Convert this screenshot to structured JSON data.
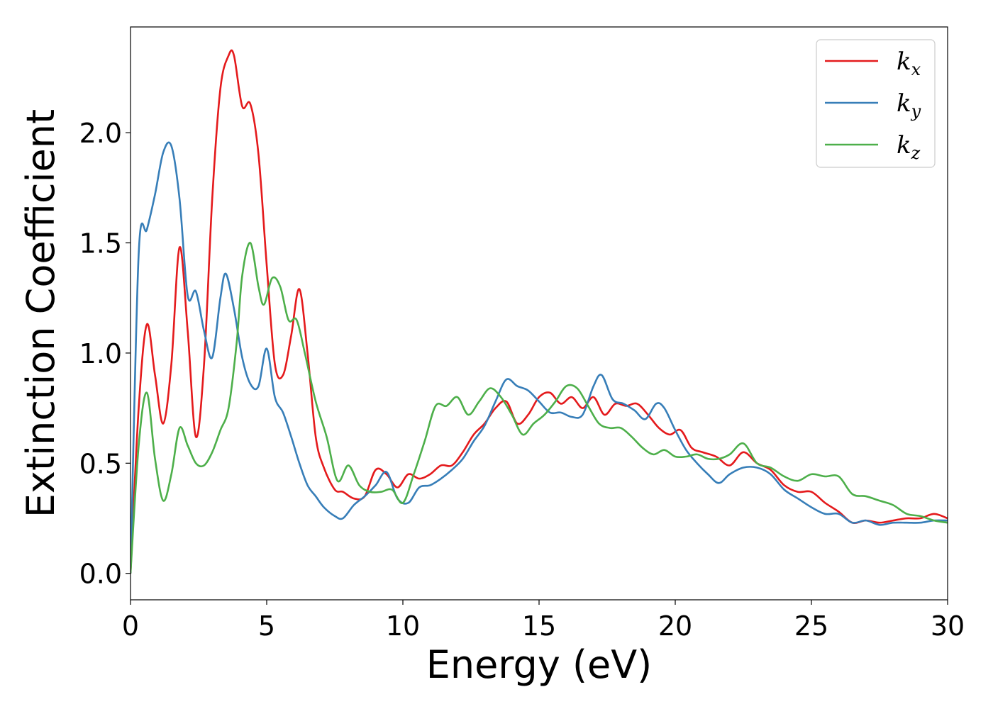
{
  "chart_data": {
    "type": "line",
    "xlabel": "Energy (eV)",
    "ylabel": "Extinction Coefficient",
    "xlim": [
      0,
      30
    ],
    "ylim": [
      -0.12,
      2.48
    ],
    "xticks": [
      0,
      5,
      10,
      15,
      20,
      25,
      30
    ],
    "xtick_labels": [
      "0",
      "5",
      "10",
      "15",
      "20",
      "25",
      "30"
    ],
    "yticks": [
      0.0,
      0.5,
      1.0,
      1.5,
      2.0
    ],
    "ytick_labels": [
      "0.0",
      "0.5",
      "1.0",
      "1.5",
      "2.0"
    ],
    "grid": false,
    "legend_position": "top-right",
    "series": [
      {
        "name": "k_x",
        "label_main": "k",
        "label_sub": "x",
        "color": "#e41a1c",
        "x": [
          0,
          0.3,
          0.6,
          0.9,
          1.2,
          1.5,
          1.8,
          2.1,
          2.4,
          2.7,
          3.0,
          3.3,
          3.6,
          3.8,
          4.1,
          4.4,
          4.7,
          5.0,
          5.3,
          5.6,
          5.9,
          6.2,
          6.5,
          6.8,
          7.1,
          7.5,
          7.8,
          8.2,
          8.6,
          9.0,
          9.4,
          9.8,
          10.2,
          10.6,
          11.0,
          11.4,
          11.8,
          12.2,
          12.6,
          13.0,
          13.4,
          13.8,
          14.2,
          14.6,
          15.0,
          15.4,
          15.8,
          16.2,
          16.6,
          17.0,
          17.4,
          17.8,
          18.2,
          18.6,
          19.0,
          19.4,
          19.8,
          20.2,
          20.6,
          21.0,
          21.5,
          22.0,
          22.5,
          23.0,
          23.5,
          24.0,
          24.5,
          25.0,
          25.5,
          26.0,
          26.5,
          27.0,
          27.5,
          28.0,
          28.5,
          29.0,
          29.5,
          30.0
        ],
        "y": [
          0.0,
          0.75,
          1.13,
          0.9,
          0.68,
          0.95,
          1.48,
          1.1,
          0.62,
          0.95,
          1.7,
          2.2,
          2.35,
          2.35,
          2.12,
          2.13,
          1.9,
          1.4,
          0.95,
          0.9,
          1.08,
          1.29,
          1.0,
          0.62,
          0.48,
          0.38,
          0.37,
          0.34,
          0.35,
          0.47,
          0.45,
          0.39,
          0.45,
          0.43,
          0.45,
          0.49,
          0.49,
          0.55,
          0.63,
          0.68,
          0.75,
          0.78,
          0.68,
          0.72,
          0.8,
          0.82,
          0.77,
          0.8,
          0.75,
          0.8,
          0.72,
          0.77,
          0.76,
          0.77,
          0.72,
          0.66,
          0.63,
          0.65,
          0.57,
          0.55,
          0.53,
          0.49,
          0.55,
          0.5,
          0.47,
          0.4,
          0.37,
          0.37,
          0.32,
          0.28,
          0.23,
          0.24,
          0.23,
          0.24,
          0.25,
          0.25,
          0.27,
          0.25
        ]
      },
      {
        "name": "k_y",
        "label_main": "k",
        "label_sub": "y",
        "color": "#377eb8",
        "x": [
          0,
          0.3,
          0.6,
          0.9,
          1.2,
          1.5,
          1.8,
          2.1,
          2.4,
          2.7,
          3.0,
          3.3,
          3.5,
          3.8,
          4.1,
          4.4,
          4.7,
          5.0,
          5.3,
          5.6,
          5.9,
          6.2,
          6.5,
          6.8,
          7.1,
          7.5,
          7.8,
          8.2,
          8.6,
          9.0,
          9.4,
          9.8,
          10.2,
          10.6,
          11.0,
          11.4,
          11.8,
          12.2,
          12.6,
          13.0,
          13.4,
          13.8,
          14.2,
          14.6,
          15.0,
          15.4,
          15.8,
          16.2,
          16.6,
          17.0,
          17.3,
          17.7,
          18.1,
          18.5,
          18.9,
          19.3,
          19.6,
          20.0,
          20.4,
          20.8,
          21.2,
          21.6,
          22.0,
          22.5,
          23.0,
          23.5,
          24.0,
          24.5,
          25.0,
          25.5,
          26.0,
          26.5,
          27.0,
          27.5,
          28.0,
          28.5,
          29.0,
          29.5,
          30.0
        ],
        "y": [
          0.0,
          1.45,
          1.56,
          1.72,
          1.91,
          1.94,
          1.7,
          1.26,
          1.28,
          1.1,
          0.98,
          1.25,
          1.36,
          1.2,
          0.98,
          0.86,
          0.85,
          1.02,
          0.8,
          0.73,
          0.62,
          0.5,
          0.4,
          0.35,
          0.3,
          0.26,
          0.25,
          0.31,
          0.35,
          0.4,
          0.46,
          0.34,
          0.32,
          0.39,
          0.4,
          0.43,
          0.47,
          0.52,
          0.6,
          0.67,
          0.78,
          0.88,
          0.85,
          0.83,
          0.78,
          0.73,
          0.73,
          0.71,
          0.72,
          0.85,
          0.9,
          0.79,
          0.77,
          0.74,
          0.7,
          0.77,
          0.75,
          0.65,
          0.56,
          0.5,
          0.45,
          0.41,
          0.45,
          0.48,
          0.48,
          0.45,
          0.38,
          0.34,
          0.3,
          0.27,
          0.27,
          0.23,
          0.24,
          0.22,
          0.23,
          0.23,
          0.23,
          0.24,
          0.24
        ]
      },
      {
        "name": "k_z",
        "label_main": "k",
        "label_sub": "z",
        "color": "#4daf4a",
        "x": [
          0,
          0.3,
          0.6,
          0.9,
          1.2,
          1.5,
          1.8,
          2.1,
          2.4,
          2.7,
          3.0,
          3.3,
          3.6,
          3.9,
          4.1,
          4.4,
          4.7,
          4.9,
          5.2,
          5.5,
          5.8,
          6.1,
          6.4,
          6.8,
          7.2,
          7.6,
          8.0,
          8.4,
          8.8,
          9.2,
          9.6,
          10.0,
          10.4,
          10.8,
          11.2,
          11.6,
          12.0,
          12.4,
          12.8,
          13.2,
          13.6,
          14.0,
          14.4,
          14.8,
          15.2,
          15.6,
          16.0,
          16.4,
          16.8,
          17.2,
          17.6,
          18.0,
          18.4,
          18.8,
          19.2,
          19.6,
          20.0,
          20.4,
          20.8,
          21.2,
          21.6,
          22.0,
          22.5,
          23.0,
          23.5,
          24.0,
          24.5,
          25.0,
          25.5,
          26.0,
          26.5,
          27.0,
          27.5,
          28.0,
          28.5,
          29.0,
          29.5,
          30.0
        ],
        "y": [
          0.0,
          0.58,
          0.82,
          0.52,
          0.33,
          0.45,
          0.66,
          0.58,
          0.5,
          0.49,
          0.55,
          0.65,
          0.75,
          1.05,
          1.35,
          1.5,
          1.3,
          1.22,
          1.34,
          1.3,
          1.15,
          1.15,
          1.0,
          0.78,
          0.62,
          0.42,
          0.49,
          0.4,
          0.37,
          0.37,
          0.38,
          0.32,
          0.45,
          0.6,
          0.76,
          0.76,
          0.8,
          0.72,
          0.78,
          0.84,
          0.8,
          0.72,
          0.63,
          0.68,
          0.72,
          0.78,
          0.85,
          0.84,
          0.76,
          0.68,
          0.66,
          0.66,
          0.62,
          0.57,
          0.54,
          0.56,
          0.53,
          0.53,
          0.54,
          0.52,
          0.52,
          0.54,
          0.59,
          0.5,
          0.48,
          0.44,
          0.42,
          0.45,
          0.44,
          0.44,
          0.36,
          0.35,
          0.33,
          0.31,
          0.27,
          0.26,
          0.24,
          0.23
        ]
      }
    ]
  }
}
